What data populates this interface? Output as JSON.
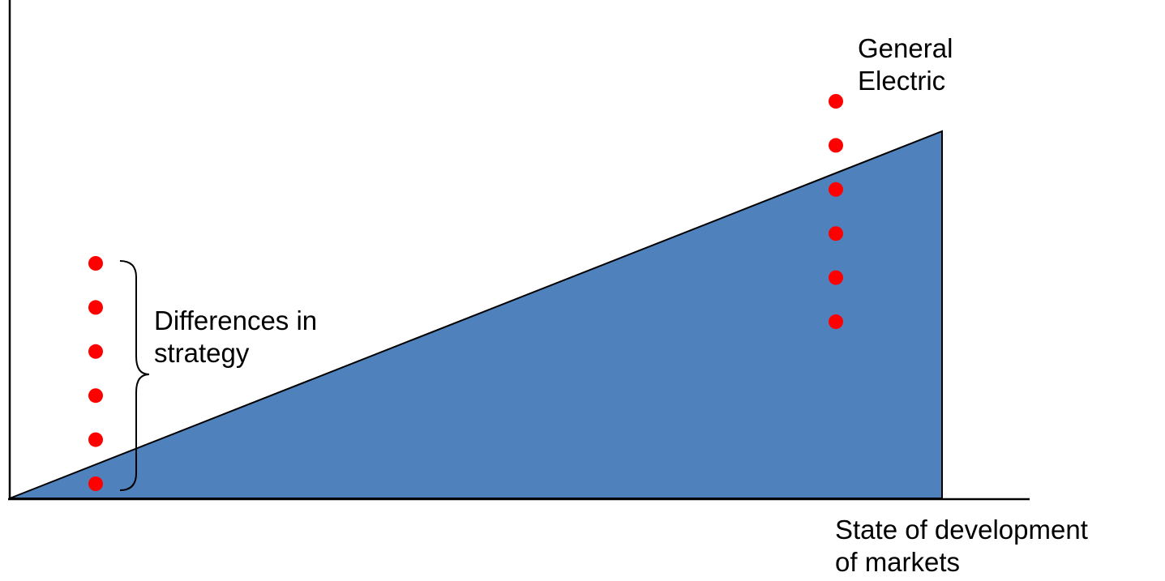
{
  "labels": {
    "company": [
      "General",
      "Electric"
    ],
    "bracket": [
      "Differences in",
      "strategy"
    ],
    "x_axis": [
      "State of development",
      "of markets"
    ]
  },
  "groups": {
    "left": {
      "dot_count": 6
    },
    "right": {
      "dot_count": 6
    }
  },
  "colors": {
    "fill": "#4f81bd",
    "dot": "#ff0000",
    "stroke": "#000000"
  }
}
